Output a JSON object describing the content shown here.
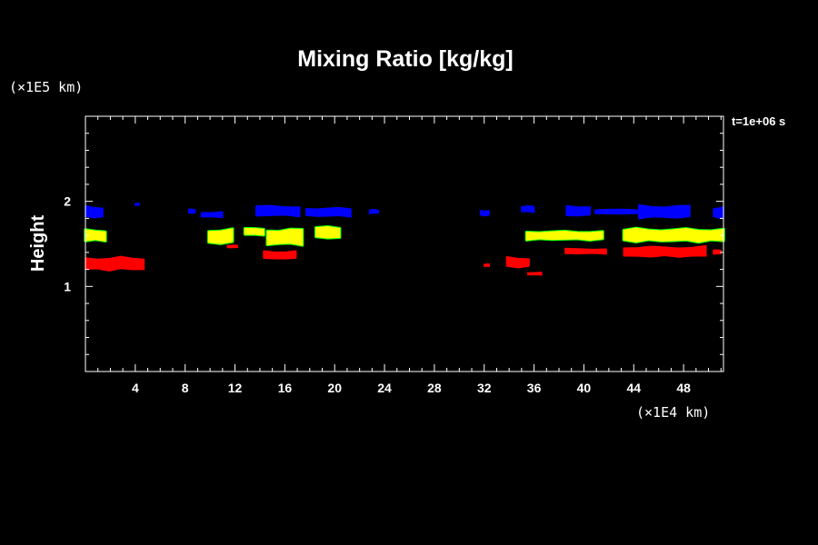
{
  "chart_data": {
    "type": "heatmap",
    "title": "Mixing Ratio [kg/kg]",
    "xlabel": "",
    "ylabel": "Height",
    "x_unit": "(×1E4 km)",
    "y_unit": "(×1E5 km)",
    "time_label": "t=1e+06 s",
    "xlim": [
      0,
      51.2
    ],
    "ylim": [
      0,
      3.0
    ],
    "x_ticks": [
      4,
      8,
      12,
      16,
      20,
      24,
      28,
      32,
      36,
      40,
      44,
      48
    ],
    "x_tick_labels": [
      "4",
      "8",
      "12",
      "16",
      "20",
      "24",
      "28",
      "32",
      "36",
      "40",
      "44",
      "48"
    ],
    "y_ticks": [
      1,
      2
    ],
    "y_tick_labels": [
      "1",
      "2"
    ],
    "background": "#000000",
    "foreground": "#ffffff",
    "colors": {
      "blue": "#0000ff",
      "green": "#00ff00",
      "yellow": "#ffff00",
      "red": "#ff0000"
    },
    "regions": [
      {
        "color": "blue",
        "x": [
          0,
          1.4
        ],
        "y": [
          1.78,
          1.97
        ]
      },
      {
        "color": "blue",
        "x": [
          4.0,
          4.3
        ],
        "y": [
          1.95,
          1.98
        ]
      },
      {
        "color": "blue",
        "x": [
          8.3,
          8.8
        ],
        "y": [
          1.85,
          1.92
        ]
      },
      {
        "color": "blue",
        "x": [
          9.3,
          11.0
        ],
        "y": [
          1.8,
          1.89
        ]
      },
      {
        "color": "blue",
        "x": [
          13.7,
          17.2
        ],
        "y": [
          1.8,
          1.98
        ]
      },
      {
        "color": "blue",
        "x": [
          17.7,
          21.3
        ],
        "y": [
          1.8,
          1.95
        ]
      },
      {
        "color": "blue",
        "x": [
          22.8,
          23.5
        ],
        "y": [
          1.85,
          1.91
        ]
      },
      {
        "color": "blue",
        "x": [
          31.7,
          32.4
        ],
        "y": [
          1.82,
          1.91
        ]
      },
      {
        "color": "blue",
        "x": [
          35.0,
          36.0
        ],
        "y": [
          1.86,
          1.96
        ]
      },
      {
        "color": "blue",
        "x": [
          38.6,
          40.5
        ],
        "y": [
          1.8,
          1.98
        ]
      },
      {
        "color": "blue",
        "x": [
          40.9,
          44.3
        ],
        "y": [
          1.84,
          1.92
        ]
      },
      {
        "color": "blue",
        "x": [
          44.4,
          48.5
        ],
        "y": [
          1.77,
          1.99
        ]
      },
      {
        "color": "blue",
        "x": [
          50.4,
          51.2
        ],
        "y": [
          1.78,
          1.96
        ]
      },
      {
        "color": "yellow",
        "x": [
          0,
          1.6
        ],
        "y": [
          1.51,
          1.69
        ]
      },
      {
        "color": "yellow",
        "x": [
          9.9,
          11.8
        ],
        "y": [
          1.47,
          1.71
        ]
      },
      {
        "color": "yellow",
        "x": [
          12.8,
          14.3
        ],
        "y": [
          1.59,
          1.7
        ]
      },
      {
        "color": "yellow",
        "x": [
          14.6,
          17.4
        ],
        "y": [
          1.45,
          1.72
        ]
      },
      {
        "color": "yellow",
        "x": [
          18.5,
          20.4
        ],
        "y": [
          1.54,
          1.73
        ]
      },
      {
        "color": "yellow",
        "x": [
          35.4,
          41.5
        ],
        "y": [
          1.53,
          1.67
        ]
      },
      {
        "color": "yellow",
        "x": [
          43.2,
          51.2
        ],
        "y": [
          1.5,
          1.71
        ]
      },
      {
        "color": "red",
        "x": [
          0,
          4.7
        ],
        "y": [
          1.16,
          1.38
        ]
      },
      {
        "color": "red",
        "x": [
          11.4,
          12.2
        ],
        "y": [
          1.45,
          1.49
        ]
      },
      {
        "color": "red",
        "x": [
          14.3,
          16.9
        ],
        "y": [
          1.3,
          1.44
        ]
      },
      {
        "color": "red",
        "x": [
          32.0,
          32.4
        ],
        "y": [
          1.23,
          1.27
        ]
      },
      {
        "color": "red",
        "x": [
          33.8,
          35.6
        ],
        "y": [
          1.2,
          1.37
        ]
      },
      {
        "color": "red",
        "x": [
          35.5,
          36.6
        ],
        "y": [
          1.13,
          1.17
        ]
      },
      {
        "color": "red",
        "x": [
          38.5,
          41.8
        ],
        "y": [
          1.37,
          1.46
        ]
      },
      {
        "color": "red",
        "x": [
          43.2,
          49.8
        ],
        "y": [
          1.32,
          1.5
        ]
      },
      {
        "color": "red",
        "x": [
          50.4,
          51.0
        ],
        "y": [
          1.37,
          1.44
        ]
      }
    ]
  }
}
